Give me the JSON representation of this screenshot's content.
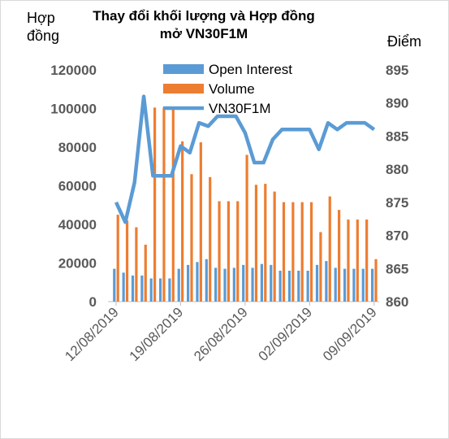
{
  "chart_data": {
    "type": "bar-line",
    "title": "Thay đổi khối lượng và Hợp đồng mở VN30F1M",
    "y_label": "Hợp đồng",
    "y2_label": "Điểm",
    "categories": [
      "12/08/2019",
      null,
      null,
      null,
      null,
      null,
      null,
      "19/08/2019",
      null,
      null,
      null,
      null,
      null,
      null,
      "26/08/2019",
      null,
      null,
      null,
      null,
      null,
      null,
      "02/09/2019",
      null,
      null,
      null,
      null,
      null,
      null,
      "09/09/2019"
    ],
    "series": [
      {
        "name": "Open Interest",
        "color": "#5b9bd5",
        "kind": "bar",
        "values": [
          17000,
          15000,
          13500,
          13500,
          12000,
          12000,
          12000,
          17000,
          19000,
          20500,
          22000,
          17500,
          17000,
          17500,
          19000,
          17500,
          19500,
          19000,
          16000,
          16000,
          16000,
          16000,
          19000,
          21000,
          17500,
          17000,
          17000,
          17000,
          17000
        ]
      },
      {
        "name": "Volume",
        "color": "#ed7d31",
        "kind": "bar",
        "values": [
          45000,
          42000,
          38500,
          29500,
          100500,
          100500,
          100500,
          83000,
          66000,
          82500,
          64500,
          52000,
          52000,
          52000,
          76000,
          60500,
          61000,
          57000,
          51500,
          51500,
          51500,
          51500,
          36000,
          54500,
          47500,
          42500,
          42500,
          42500,
          22000
        ]
      },
      {
        "name": "VN30F1M",
        "color": "#5b9bd5",
        "kind": "line",
        "axis": "y2",
        "values": [
          875,
          872,
          878,
          891,
          879,
          879,
          879,
          883.5,
          882.5,
          887,
          886.5,
          888,
          888,
          888,
          885.5,
          881,
          881,
          884.5,
          886,
          886,
          886,
          886,
          883,
          887,
          886,
          887,
          887,
          887,
          886
        ]
      }
    ],
    "ylim": [
      0,
      120000
    ],
    "yticks": [
      0,
      20000,
      40000,
      60000,
      80000,
      100000,
      120000
    ],
    "y2lim": [
      860,
      895
    ],
    "y2ticks": [
      860,
      865,
      870,
      875,
      880,
      885,
      890,
      895
    ],
    "grid": false
  }
}
